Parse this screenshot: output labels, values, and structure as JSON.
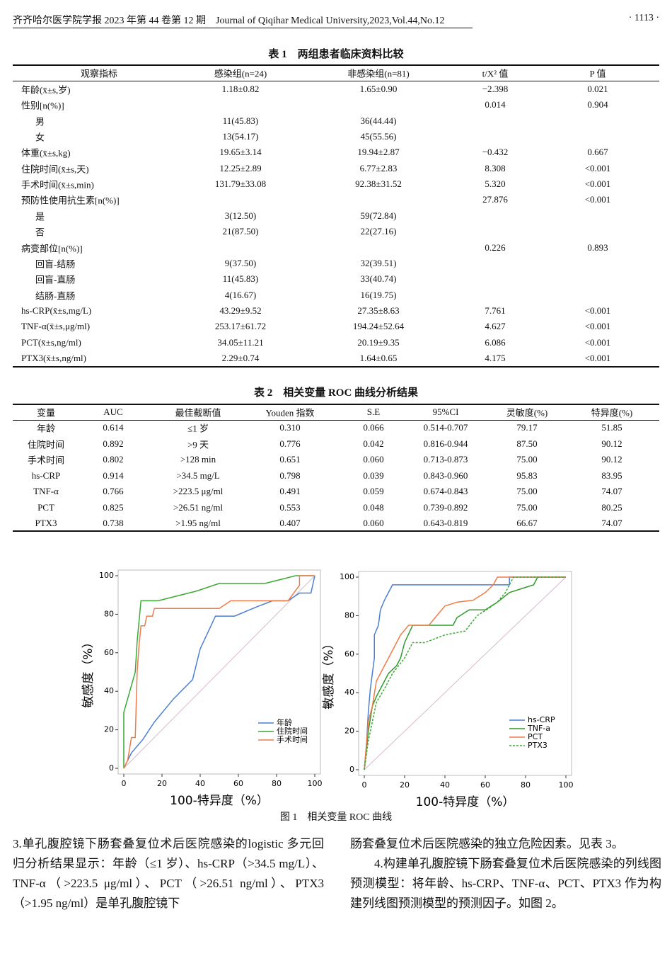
{
  "header": {
    "left": "齐齐哈尔医学院学报 2023 年第 44 卷第 12 期　Journal of Qiqihar Medical University,2023,Vol.44,No.12",
    "right": "· 1113 ·"
  },
  "table1": {
    "title": "表 1　两组患者临床资料比较",
    "columns": [
      "观察指标",
      "感染组(n=24)",
      "非感染组(n=81)",
      "t/X² 值",
      "P 值"
    ],
    "rows": [
      {
        "cells": [
          "年龄(x̄±s,岁)",
          "1.18±0.82",
          "1.65±0.90",
          "−2.398",
          "0.021"
        ]
      },
      {
        "cells": [
          "性别[n(%)]",
          null,
          null,
          "0.014",
          "0.904"
        ]
      },
      {
        "cells": [
          "男",
          "11(45.83)",
          "36(44.44)"
        ],
        "indent": true
      },
      {
        "cells": [
          "女",
          "13(54.17)",
          "45(55.56)"
        ],
        "indent": true
      },
      {
        "cells": [
          "体重(x̄±s,kg)",
          "19.65±3.14",
          "19.94±2.87",
          "−0.432",
          "0.667"
        ]
      },
      {
        "cells": [
          "住院时间(x̄±s,天)",
          "12.25±2.89",
          "6.77±2.83",
          "8.308",
          "<0.001"
        ]
      },
      {
        "cells": [
          "手术时间(x̄±s,min)",
          "131.79±33.08",
          "92.38±31.52",
          "5.320",
          "<0.001"
        ]
      },
      {
        "cells": [
          "预防性使用抗生素[n(%)]",
          null,
          null,
          "27.876",
          "<0.001"
        ]
      },
      {
        "cells": [
          "是",
          "3(12.50)",
          "59(72.84)"
        ],
        "indent": true
      },
      {
        "cells": [
          "否",
          "21(87.50)",
          "22(27.16)"
        ],
        "indent": true
      },
      {
        "cells": [
          "病变部位[n(%)]",
          null,
          null,
          "0.226",
          "0.893"
        ]
      },
      {
        "cells": [
          "回盲-结肠",
          "9(37.50)",
          "32(39.51)"
        ],
        "indent": true
      },
      {
        "cells": [
          "回盲-直肠",
          "11(45.83)",
          "33(40.74)"
        ],
        "indent": true
      },
      {
        "cells": [
          "结肠-直肠",
          "4(16.67)",
          "16(19.75)"
        ],
        "indent": true
      },
      {
        "cells": [
          "hs-CRP(x̄±s,mg/L)",
          "43.29±9.52",
          "27.35±8.63",
          "7.761",
          "<0.001"
        ]
      },
      {
        "cells": [
          "TNF-α(x̄±s,μg/ml)",
          "253.17±61.72",
          "194.24±52.64",
          "4.627",
          "<0.001"
        ]
      },
      {
        "cells": [
          "PCT(x̄±s,ng/ml)",
          "34.05±11.21",
          "20.19±9.35",
          "6.086",
          "<0.001"
        ]
      },
      {
        "cells": [
          "PTX3(x̄±s,ng/ml)",
          "2.29±0.74",
          "1.64±0.65",
          "4.175",
          "<0.001"
        ]
      }
    ]
  },
  "table2": {
    "title": "表 2　相关变量 ROC 曲线分析结果",
    "columns": [
      "变量",
      "AUC",
      "最佳截断值",
      "Youden 指数",
      "S.E",
      "95%CI",
      "灵敏度(%)",
      "特异度(%)"
    ],
    "rows": [
      {
        "cells": [
          "年龄",
          "0.614",
          "≤1 岁",
          "0.310",
          "0.066",
          "0.514-0.707",
          "79.17",
          "51.85"
        ]
      },
      {
        "cells": [
          "住院时间",
          "0.892",
          ">9 天",
          "0.776",
          "0.042",
          "0.816-0.944",
          "87.50",
          "90.12"
        ]
      },
      {
        "cells": [
          "手术时间",
          "0.802",
          ">128 min",
          "0.651",
          "0.060",
          "0.713-0.873",
          "75.00",
          "90.12"
        ]
      },
      {
        "cells": [
          "hs-CRP",
          "0.914",
          ">34.5 mg/L",
          "0.798",
          "0.039",
          "0.843-0.960",
          "95.83",
          "83.95"
        ]
      },
      {
        "cells": [
          "TNF-α",
          "0.766",
          ">223.5 μg/ml",
          "0.491",
          "0.059",
          "0.674-0.843",
          "75.00",
          "74.07"
        ]
      },
      {
        "cells": [
          "PCT",
          "0.825",
          ">26.51 ng/ml",
          "0.553",
          "0.048",
          "0.739-0.892",
          "75.00",
          "80.25"
        ]
      },
      {
        "cells": [
          "PTX3",
          "0.738",
          ">1.95 ng/ml",
          "0.407",
          "0.060",
          "0.643-0.819",
          "66.67",
          "74.07"
        ]
      }
    ]
  },
  "chart_data": [
    {
      "type": "line",
      "x_label": "100-特异度（%）",
      "y_label": "敏感度（%）",
      "xlim": [
        0,
        100
      ],
      "ylim": [
        0,
        100
      ],
      "xticks": [
        0,
        20,
        40,
        60,
        80,
        100
      ],
      "yticks": [
        0,
        20,
        40,
        60,
        80,
        100
      ],
      "legend": "lower right",
      "series": [
        {
          "name": "年龄",
          "color": "#4a7fd4",
          "x": [
            0,
            4,
            10,
            16,
            26,
            36,
            40,
            48,
            58,
            70,
            78,
            86,
            92,
            98,
            100
          ],
          "values": [
            0,
            8,
            15,
            24,
            36,
            46,
            62,
            79,
            79,
            84,
            87,
            87,
            91,
            91,
            100
          ]
        },
        {
          "name": "住院时间",
          "color": "#3aaa35",
          "x": [
            0,
            0,
            6,
            7,
            9,
            18,
            38,
            50,
            74,
            90,
            100
          ],
          "values": [
            0,
            29,
            50,
            66,
            87,
            87,
            92,
            96,
            96,
            100,
            100
          ]
        },
        {
          "name": "手术时间",
          "color": "#f07c4a",
          "x": [
            0,
            2,
            4,
            6,
            7,
            8,
            9,
            11,
            12,
            15,
            16,
            50,
            56,
            86,
            92,
            92,
            100
          ],
          "values": [
            0,
            4,
            16,
            16,
            50,
            64,
            74,
            74,
            79,
            79,
            83,
            83,
            87,
            87,
            95,
            100,
            100
          ]
        }
      ]
    },
    {
      "type": "line",
      "x_label": "100-特异度（%）",
      "y_label": "敏感度（%）",
      "xlim": [
        0,
        100
      ],
      "ylim": [
        0,
        100
      ],
      "xticks": [
        0,
        20,
        40,
        60,
        80,
        100
      ],
      "yticks": [
        0,
        20,
        40,
        60,
        80,
        100
      ],
      "legend": "lower right",
      "series": [
        {
          "name": "hs-CRP",
          "color": "#4a7fd4",
          "x": [
            0,
            1,
            2,
            3,
            5,
            5,
            7,
            8,
            10,
            12,
            14,
            72,
            72,
            100
          ],
          "values": [
            0,
            12,
            30,
            42,
            58,
            70,
            75,
            83,
            88,
            92,
            96,
            96,
            100,
            100
          ]
        },
        {
          "name": "TNF-a",
          "color": "#2f9a2a",
          "x": [
            0,
            2,
            4,
            6,
            8,
            10,
            12,
            16,
            18,
            20,
            24,
            44,
            46,
            52,
            60,
            66,
            72,
            84,
            86,
            100
          ],
          "values": [
            0,
            20,
            33,
            38,
            42,
            46,
            50,
            54,
            58,
            66,
            75,
            75,
            79,
            83,
            83,
            87,
            92,
            96,
            100,
            100
          ]
        },
        {
          "name": "PCT",
          "color": "#f07c4a",
          "x": [
            0,
            2,
            4,
            6,
            8,
            12,
            14,
            16,
            18,
            22,
            32,
            36,
            40,
            46,
            54,
            60,
            64,
            66,
            100
          ],
          "values": [
            0,
            25,
            33,
            46,
            50,
            58,
            62,
            66,
            70,
            75,
            75,
            80,
            85,
            87,
            88,
            92,
            96,
            100,
            100
          ]
        },
        {
          "name": "PTX3",
          "color": "#3aaa35",
          "linestyle": "dashed",
          "x": [
            0,
            2,
            4,
            6,
            10,
            14,
            20,
            24,
            30,
            40,
            50,
            56,
            62,
            66,
            70,
            74,
            100
          ],
          "values": [
            0,
            15,
            25,
            35,
            42,
            50,
            58,
            66,
            66,
            70,
            72,
            80,
            84,
            87,
            92,
            100,
            100
          ]
        }
      ]
    }
  ],
  "figure_caption": "图 1　相关变量 ROC 曲线",
  "paragraphs": {
    "left": "3.单孔腹腔镜下肠套叠复位术后医院感染的logistic 多元回归分析结果显示：年龄（≤1 岁）、hs-CRP（>34.5 mg/L）、TNF-α（>223.5 μg/ml）、PCT（>26.51 ng/ml）、PTX3（>1.95 ng/ml）是单孔腹腔镜下",
    "right": [
      "肠套叠复位术后医院感染的独立危险因素。见表 3。",
      "4.构建单孔腹腔镜下肠套叠复位术后医院感染的列线图预测模型：将年龄、hs-CRP、TNF-α、PCT、PTX3 作为构建列线图预测模型的预测因子。如图 2。"
    ]
  }
}
